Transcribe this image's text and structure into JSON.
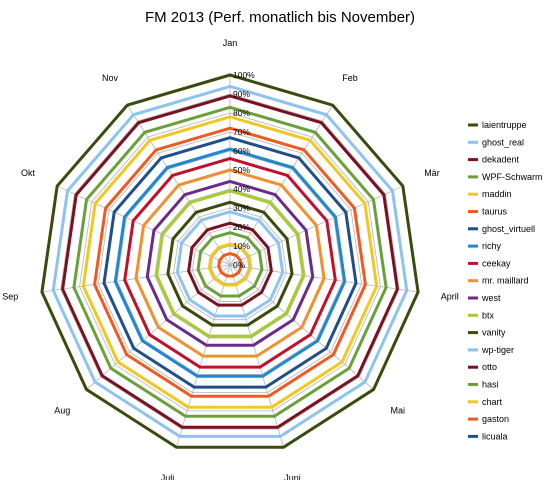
{
  "chart_data": {
    "type": "radar",
    "title": "FM 2013 (Perf. monatlich bis November)",
    "categories": [
      "Jan",
      "Feb",
      "Mär",
      "April",
      "Mai",
      "Juni",
      "Juli",
      "Aug",
      "Sep",
      "Okt",
      "Nov"
    ],
    "r_ticks": [
      "0%",
      "10%",
      "20%",
      "30%",
      "40%",
      "50%",
      "60%",
      "70%",
      "80%",
      "90%",
      "100%"
    ],
    "rlim": [
      0,
      100
    ],
    "grid": true,
    "legend_position": "right",
    "series": [
      {
        "name": "laientruppe",
        "color": "#3b4a0e",
        "values": [
          100,
          100,
          100,
          100,
          100,
          100,
          100,
          100,
          100,
          100,
          100
        ]
      },
      {
        "name": "ghost_real",
        "color": "#8dc3f0",
        "values": [
          94,
          94,
          94,
          94,
          94,
          94,
          94,
          94,
          94,
          94,
          94
        ]
      },
      {
        "name": "dekadent",
        "color": "#7a1020",
        "values": [
          89,
          89,
          89,
          89,
          89,
          89,
          89,
          89,
          89,
          89,
          89
        ]
      },
      {
        "name": "WPF-Schwarm",
        "color": "#6aa03a",
        "values": [
          83,
          83,
          83,
          83,
          83,
          83,
          83,
          83,
          83,
          83,
          83
        ]
      },
      {
        "name": "maddin",
        "color": "#f0c820",
        "values": [
          78,
          78,
          78,
          78,
          78,
          78,
          78,
          78,
          78,
          78,
          78
        ]
      },
      {
        "name": "taurus",
        "color": "#f05a20",
        "values": [
          72,
          72,
          72,
          72,
          72,
          72,
          72,
          72,
          72,
          72,
          72
        ]
      },
      {
        "name": "ghost_virtuell",
        "color": "#1f4e8c",
        "values": [
          67,
          67,
          67,
          67,
          67,
          67,
          67,
          67,
          67,
          67,
          67
        ]
      },
      {
        "name": "richy",
        "color": "#1e88d0",
        "values": [
          61,
          61,
          61,
          61,
          61,
          61,
          61,
          61,
          61,
          61,
          61
        ]
      },
      {
        "name": "ceekay",
        "color": "#c0102a",
        "values": [
          56,
          56,
          56,
          56,
          56,
          56,
          56,
          56,
          56,
          56,
          56
        ]
      },
      {
        "name": "mr. maillard",
        "color": "#f09030",
        "values": [
          50,
          50,
          50,
          50,
          50,
          50,
          50,
          50,
          50,
          50,
          50
        ]
      },
      {
        "name": "west",
        "color": "#6a2a8c",
        "values": [
          44,
          44,
          44,
          44,
          44,
          44,
          44,
          44,
          44,
          44,
          44
        ]
      },
      {
        "name": "btx",
        "color": "#a8cc30",
        "values": [
          39,
          39,
          39,
          39,
          39,
          39,
          39,
          39,
          39,
          39,
          39
        ]
      },
      {
        "name": "vanity",
        "color": "#3b4a0e",
        "values": [
          33,
          33,
          33,
          33,
          33,
          33,
          33,
          33,
          33,
          33,
          33
        ]
      },
      {
        "name": "wp-tiger",
        "color": "#8dc3f0",
        "values": [
          28,
          28,
          28,
          28,
          28,
          28,
          28,
          28,
          28,
          28,
          28
        ]
      },
      {
        "name": "otto",
        "color": "#7a1020",
        "values": [
          22,
          22,
          22,
          22,
          22,
          22,
          22,
          22,
          22,
          22,
          22
        ]
      },
      {
        "name": "hasi",
        "color": "#6aa03a",
        "values": [
          17,
          17,
          17,
          17,
          17,
          17,
          17,
          17,
          17,
          17,
          17
        ]
      },
      {
        "name": "chart",
        "color": "#f0c820",
        "values": [
          11,
          11,
          11,
          11,
          11,
          11,
          11,
          11,
          11,
          11,
          11
        ]
      },
      {
        "name": "gaston",
        "color": "#f05a20",
        "values": [
          6,
          6,
          6,
          6,
          6,
          6,
          6,
          6,
          6,
          6,
          6
        ]
      },
      {
        "name": "licuala",
        "color": "#1f4e8c",
        "values": [
          0,
          0,
          0,
          0,
          0,
          0,
          0,
          0,
          0,
          0,
          0
        ]
      }
    ]
  }
}
